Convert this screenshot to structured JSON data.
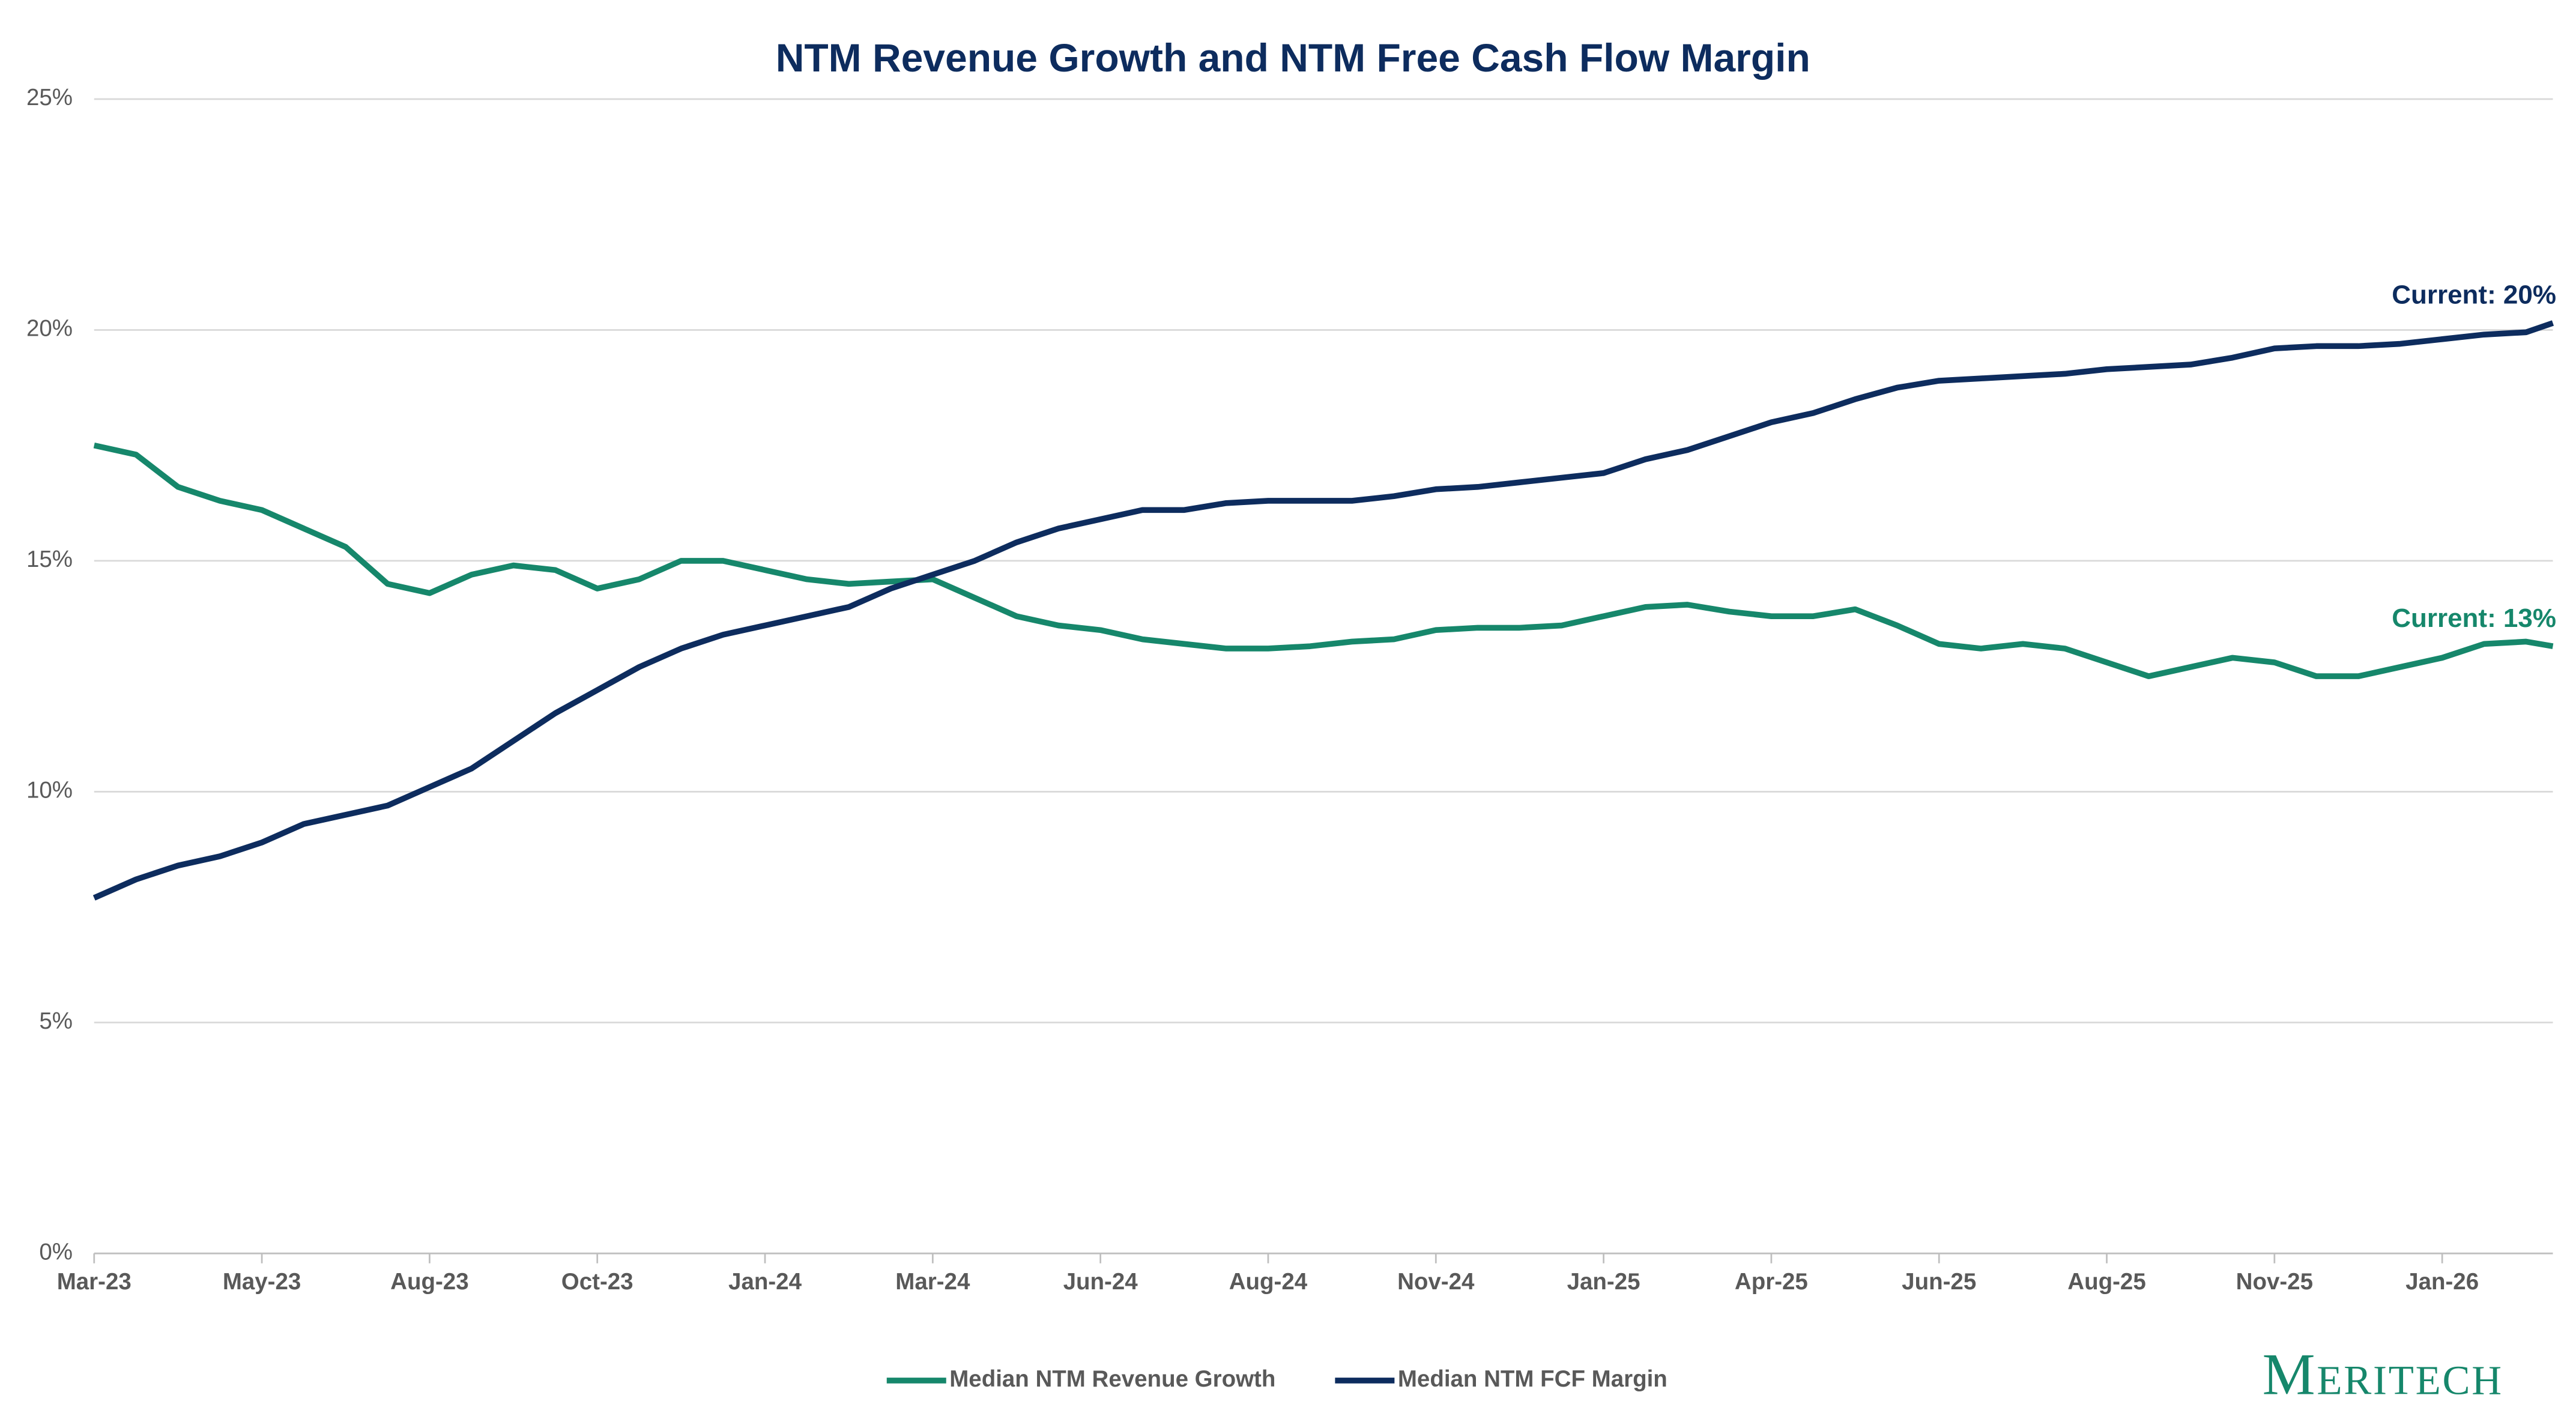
{
  "chart_data": {
    "type": "line",
    "title": "NTM Revenue Growth and NTM Free Cash Flow Margin",
    "x": [
      0,
      0.25,
      0.5,
      0.75,
      1,
      1.25,
      1.5,
      1.75,
      2,
      2.25,
      2.5,
      2.75,
      3,
      3.25,
      3.5,
      3.75,
      4,
      4.25,
      4.5,
      4.75,
      5,
      5.25,
      5.5,
      5.75,
      6,
      6.25,
      6.5,
      6.75,
      7,
      7.25,
      7.5,
      7.75,
      8,
      8.25,
      8.5,
      8.75,
      9,
      9.25,
      9.5,
      9.75,
      10,
      10.25,
      10.5,
      10.75,
      11,
      11.25,
      11.5,
      11.75,
      12,
      12.25,
      12.5,
      12.75,
      13,
      13.25,
      13.5,
      13.75,
      14,
      14.25,
      14.5,
      14.66
    ],
    "series": [
      {
        "name": "Median NTM Revenue Growth",
        "color": "#16876b",
        "values": [
          17.5,
          17.3,
          16.6,
          16.3,
          16.1,
          15.7,
          15.3,
          14.5,
          14.3,
          14.7,
          14.9,
          14.8,
          14.4,
          14.6,
          15.0,
          15.0,
          14.8,
          14.6,
          14.5,
          14.55,
          14.6,
          14.2,
          13.8,
          13.6,
          13.5,
          13.3,
          13.2,
          13.1,
          13.1,
          13.15,
          13.25,
          13.3,
          13.5,
          13.55,
          13.55,
          13.6,
          13.8,
          14.0,
          14.05,
          13.9,
          13.8,
          13.8,
          13.95,
          13.6,
          13.2,
          13.1,
          13.2,
          13.1,
          12.8,
          12.5,
          12.7,
          12.9,
          12.8,
          12.5,
          12.5,
          12.7,
          12.9,
          13.2,
          13.25,
          13.15
        ]
      },
      {
        "name": "Median NTM FCF Margin",
        "color": "#0d2c5e",
        "values": [
          7.7,
          8.1,
          8.4,
          8.6,
          8.9,
          9.3,
          9.5,
          9.7,
          10.1,
          10.5,
          11.1,
          11.7,
          12.2,
          12.7,
          13.1,
          13.4,
          13.6,
          13.8,
          14.0,
          14.4,
          14.7,
          15.0,
          15.4,
          15.7,
          15.9,
          16.1,
          16.1,
          16.25,
          16.3,
          16.3,
          16.3,
          16.4,
          16.55,
          16.6,
          16.7,
          16.8,
          16.9,
          17.2,
          17.4,
          17.7,
          18.0,
          18.2,
          18.5,
          18.75,
          18.9,
          18.95,
          19.0,
          19.05,
          19.15,
          19.2,
          19.25,
          19.4,
          19.6,
          19.65,
          19.65,
          19.7,
          19.8,
          19.9,
          19.95,
          20.15
        ]
      }
    ],
    "xlim": [
      0,
      14.66
    ],
    "xticks": [
      {
        "value": 0,
        "label": "Mar-23"
      },
      {
        "value": 1,
        "label": "May-23"
      },
      {
        "value": 2,
        "label": "Aug-23"
      },
      {
        "value": 3,
        "label": "Oct-23"
      },
      {
        "value": 4,
        "label": "Jan-24"
      },
      {
        "value": 5,
        "label": "Mar-24"
      },
      {
        "value": 6,
        "label": "Jun-24"
      },
      {
        "value": 7,
        "label": "Aug-24"
      },
      {
        "value": 8,
        "label": "Nov-24"
      },
      {
        "value": 9,
        "label": "Jan-25"
      },
      {
        "value": 10,
        "label": "Apr-25"
      },
      {
        "value": 11,
        "label": "Jun-25"
      },
      {
        "value": 12,
        "label": "Aug-25"
      },
      {
        "value": 13,
        "label": "Nov-25"
      },
      {
        "value": 14,
        "label": "Jan-26"
      }
    ],
    "ylim": [
      0,
      25
    ],
    "yticks": [
      {
        "value": 0,
        "label": "0%"
      },
      {
        "value": 5,
        "label": "5%"
      },
      {
        "value": 10,
        "label": "10%"
      },
      {
        "value": 15,
        "label": "15%"
      },
      {
        "value": 20,
        "label": "20%"
      },
      {
        "value": 25,
        "label": "25%"
      }
    ],
    "grid": true,
    "legend": "bottom",
    "annotations": [
      "Current: 13%",
      "Current: 20%"
    ],
    "logo": "Meritech"
  }
}
